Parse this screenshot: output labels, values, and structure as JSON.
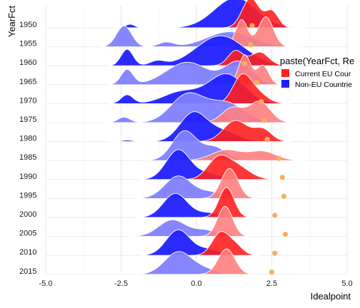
{
  "chart_data": {
    "type": "ridgeline",
    "xlabel": "Idealpoint",
    "ylabel": "YearFct",
    "xlim": [
      -5.0,
      5.0
    ],
    "x_ticks": [
      "-5.0",
      "-2.5",
      "0.0",
      "2.5",
      "5.0"
    ],
    "grid": true,
    "legend": {
      "title": "paste(YearFct, Re",
      "placement": "right",
      "entries": [
        {
          "label": "Current EU Cour",
          "color": "#ff2020"
        },
        {
          "label": "Non-EU Countrie",
          "color": "#2020ff"
        }
      ]
    },
    "colors": {
      "eu": "#ff2020",
      "non_eu": "#2020ff",
      "eu_light": "#ff8080",
      "non_eu_light": "#8080ff",
      "marker": "#f5b060"
    },
    "years": [
      "1950",
      "1955",
      "1960",
      "1965",
      "1970",
      "1975",
      "1980",
      "1985",
      "1990",
      "1995",
      "2000",
      "2005",
      "2010",
      "2015"
    ],
    "series": [
      {
        "year": "1950",
        "non_eu": [
          [
            -2.2,
            0.15,
            0.12
          ],
          [
            1.3,
            0.7,
            1.0
          ]
        ],
        "eu": [
          [
            1.8,
            0.28,
            1.0
          ],
          [
            2.5,
            0.22,
            0.55
          ]
        ],
        "marker": 1.85
      },
      {
        "year": "1955",
        "non_eu": [
          [
            -2.4,
            0.25,
            0.7
          ],
          [
            -1.0,
            0.25,
            0.15
          ],
          [
            1.1,
            0.75,
            0.5
          ]
        ],
        "eu": [
          [
            1.5,
            0.2,
            0.9
          ],
          [
            2.3,
            0.25,
            1.0
          ]
        ],
        "marker": 1.8
      },
      {
        "year": "1960",
        "non_eu": [
          [
            -2.3,
            0.2,
            0.55
          ],
          [
            -1.3,
            0.25,
            0.15
          ],
          [
            0.8,
            0.8,
            1.0
          ]
        ],
        "eu": [
          [
            1.3,
            0.25,
            0.5
          ],
          [
            2.1,
            0.3,
            0.45
          ]
        ],
        "marker": 1.6
      },
      {
        "year": "1965",
        "non_eu": [
          [
            -2.3,
            0.2,
            0.5
          ],
          [
            -0.3,
            0.7,
            0.75
          ],
          [
            1.4,
            0.45,
            0.75
          ]
        ],
        "eu": [
          [
            1.6,
            0.2,
            1.0
          ],
          [
            2.2,
            0.2,
            0.65
          ]
        ],
        "marker": 2.0
      },
      {
        "year": "1970",
        "non_eu": [
          [
            -2.3,
            0.2,
            0.3
          ],
          [
            -0.5,
            0.6,
            0.4
          ],
          [
            1.0,
            0.6,
            1.0
          ]
        ],
        "eu": [
          [
            1.5,
            0.3,
            1.0
          ],
          [
            2.0,
            0.35,
            0.4
          ]
        ],
        "marker": 2.15
      },
      {
        "year": "1975",
        "non_eu": [
          [
            -2.4,
            0.2,
            0.2
          ],
          [
            -0.3,
            0.55,
            1.0
          ],
          [
            1.0,
            0.6,
            0.7
          ]
        ],
        "eu": [
          [
            1.2,
            0.35,
            0.5
          ],
          [
            2.1,
            0.35,
            0.7
          ]
        ],
        "marker": 2.25
      },
      {
        "year": "1980",
        "non_eu": [
          [
            -2.3,
            0.2,
            0.05
          ],
          [
            -0.1,
            0.45,
            1.0
          ],
          [
            0.9,
            0.5,
            0.35
          ]
        ],
        "eu": [
          [
            1.3,
            0.4,
            0.7
          ],
          [
            2.2,
            0.3,
            0.4
          ]
        ],
        "marker": 2.35
      },
      {
        "year": "1985",
        "non_eu": [
          [
            -0.4,
            0.4,
            1.0
          ],
          [
            0.6,
            0.4,
            0.45
          ]
        ],
        "eu": [
          [
            1.0,
            0.5,
            0.35
          ],
          [
            2.2,
            0.45,
            0.3
          ]
        ],
        "marker": 2.75
      },
      {
        "year": "1990",
        "non_eu": [
          [
            -0.6,
            0.4,
            1.0
          ],
          [
            0.4,
            0.4,
            0.2
          ]
        ],
        "eu": [
          [
            0.7,
            0.35,
            0.6
          ],
          [
            1.3,
            0.45,
            0.45
          ]
        ],
        "marker": 2.85
      },
      {
        "year": "1995",
        "non_eu": [
          [
            -0.6,
            0.45,
            0.75
          ],
          [
            0.5,
            0.4,
            0.2
          ]
        ],
        "eu": [
          [
            1.1,
            0.28,
            1.0
          ]
        ],
        "marker": 2.9
      },
      {
        "year": "2000",
        "non_eu": [
          [
            -0.7,
            0.4,
            0.8
          ],
          [
            0.4,
            0.4,
            0.15
          ]
        ],
        "eu": [
          [
            1.0,
            0.25,
            1.0
          ]
        ],
        "marker": 2.6
      },
      {
        "year": "2005",
        "non_eu": [
          [
            -0.8,
            0.45,
            0.55
          ],
          [
            0.3,
            0.4,
            0.2
          ]
        ],
        "eu": [
          [
            0.95,
            0.25,
            1.0
          ]
        ],
        "marker": 2.95
      },
      {
        "year": "2010",
        "non_eu": [
          [
            -0.6,
            0.4,
            0.85
          ],
          [
            0.4,
            0.35,
            0.2
          ]
        ],
        "eu": [
          [
            0.8,
            0.28,
            0.75
          ],
          [
            1.3,
            0.25,
            0.3
          ]
        ],
        "marker": 2.6
      },
      {
        "year": "2015",
        "non_eu": [
          [
            -0.6,
            0.45,
            0.75
          ],
          [
            0.3,
            0.4,
            0.15
          ]
        ],
        "eu": [
          [
            1.0,
            0.28,
            0.85
          ]
        ],
        "marker": 2.5
      }
    ]
  }
}
